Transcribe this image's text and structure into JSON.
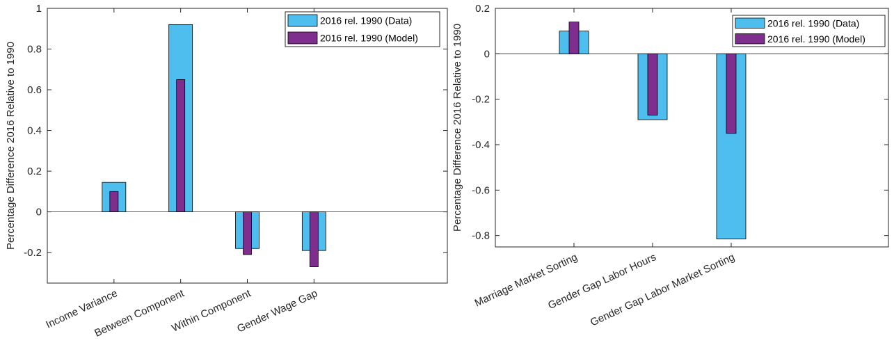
{
  "colors": {
    "data": "#4DBEEE",
    "model": "#7E2F8E",
    "axis": "#262626"
  },
  "chart_data": [
    {
      "type": "bar",
      "categories": [
        "Income Variance",
        "Between Component",
        "Within Component",
        "Gender Wage Gap"
      ],
      "series": [
        {
          "name": "2016 rel. 1990 (Data)",
          "values": [
            0.145,
            0.92,
            -0.18,
            -0.19
          ]
        },
        {
          "name": "2016 rel. 1990 (Model)",
          "values": [
            0.1,
            0.65,
            -0.21,
            -0.27
          ]
        }
      ],
      "title": "",
      "xlabel": "",
      "ylabel": "Percentage Difference 2016 Relative to 1990",
      "ylim": [
        -0.35,
        1
      ],
      "yticks": [
        -0.2,
        0,
        0.2,
        0.4,
        0.6,
        0.8,
        1
      ],
      "ytick_labels": [
        "-0.2",
        "0",
        "0.2",
        "0.4",
        "0.6",
        "0.8",
        "1"
      ],
      "legend": "top-right"
    },
    {
      "type": "bar",
      "categories": [
        "Marriage Market Sorting",
        "Gender Gap Labor Hours",
        "Gender Gap Labor Market Sorting"
      ],
      "series": [
        {
          "name": "2016 rel. 1990 (Data)",
          "values": [
            0.1,
            -0.29,
            -0.815
          ]
        },
        {
          "name": "2016 rel. 1990 (Model)",
          "values": [
            0.14,
            -0.27,
            -0.35
          ]
        }
      ],
      "title": "",
      "xlabel": "",
      "ylabel": "Percentage Difference 2016 Relative to 1990",
      "ylim": [
        -0.85,
        0.2
      ],
      "yticks": [
        -0.8,
        -0.6,
        -0.4,
        -0.2,
        0,
        0.2
      ],
      "ytick_labels": [
        "-0.8",
        "-0.6",
        "-0.4",
        "-0.2",
        "0",
        "0.2"
      ],
      "legend": "top-right"
    }
  ]
}
